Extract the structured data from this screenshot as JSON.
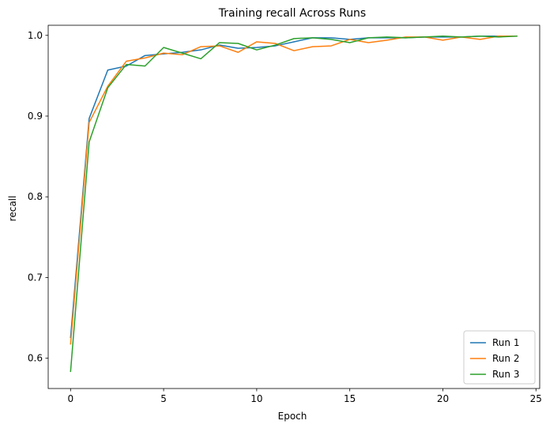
{
  "chart_data": {
    "type": "line",
    "title": "Training recall Across Runs",
    "xlabel": "Epoch",
    "ylabel": "recall",
    "xlim": [
      -1.2,
      25.2
    ],
    "ylim": [
      0.5625,
      1.0125
    ],
    "xticks": [
      0,
      5,
      10,
      15,
      20,
      25
    ],
    "yticks": [
      0.6,
      0.7,
      0.8,
      0.9,
      1.0
    ],
    "xtick_labels": [
      "0",
      "5",
      "10",
      "15",
      "20",
      "25"
    ],
    "ytick_labels": [
      "0.6",
      "0.7",
      "0.8",
      "0.9",
      "1.0"
    ],
    "legend_position": "lower-right",
    "grid": false,
    "x": [
      0,
      1,
      2,
      3,
      4,
      5,
      6,
      7,
      8,
      9,
      10,
      11,
      12,
      13,
      14,
      15,
      16,
      17,
      18,
      19,
      20,
      21,
      22,
      23,
      24
    ],
    "series": [
      {
        "name": "Run 1",
        "color": "#1f77b4",
        "values": [
          0.625,
          0.897,
          0.957,
          0.962,
          0.975,
          0.977,
          0.979,
          0.982,
          0.988,
          0.984,
          0.985,
          0.987,
          0.992,
          0.997,
          0.997,
          0.995,
          0.997,
          0.997,
          0.997,
          0.998,
          0.998,
          0.998,
          0.999,
          0.999,
          0.999
        ]
      },
      {
        "name": "Run 2",
        "color": "#ff7f0e",
        "values": [
          0.617,
          0.892,
          0.937,
          0.968,
          0.972,
          0.978,
          0.976,
          0.986,
          0.987,
          0.979,
          0.992,
          0.99,
          0.981,
          0.986,
          0.987,
          0.995,
          0.991,
          0.994,
          0.998,
          0.998,
          0.994,
          0.998,
          0.995,
          0.999,
          0.999
        ]
      },
      {
        "name": "Run 3",
        "color": "#2ca02c",
        "values": [
          0.583,
          0.868,
          0.935,
          0.964,
          0.962,
          0.985,
          0.978,
          0.971,
          0.991,
          0.99,
          0.982,
          0.988,
          0.996,
          0.997,
          0.995,
          0.991,
          0.997,
          0.998,
          0.997,
          0.998,
          0.999,
          0.998,
          0.999,
          0.998,
          0.999
        ]
      }
    ]
  }
}
